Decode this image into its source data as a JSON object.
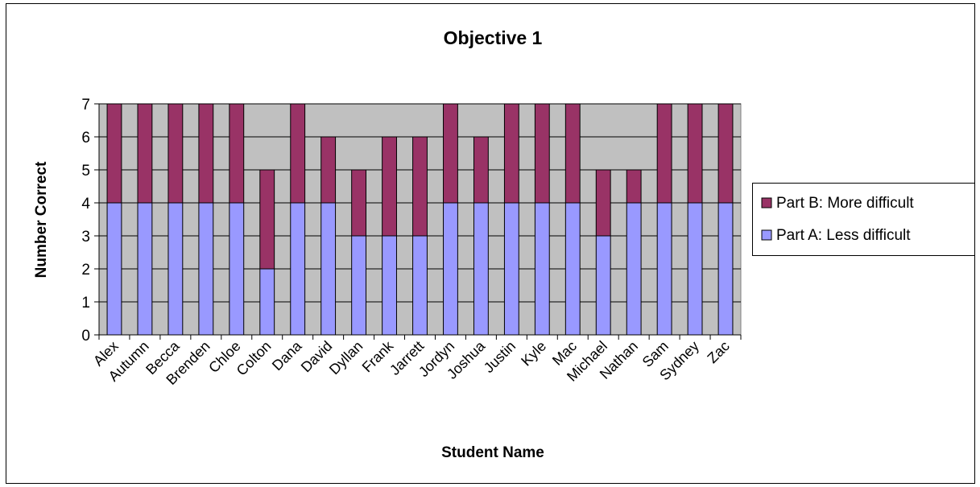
{
  "chart_data": {
    "type": "bar",
    "stacked": true,
    "title": "Objective 1",
    "xlabel": "Student Name",
    "ylabel": "Number Correct",
    "ylim": [
      0,
      7
    ],
    "yticks": [
      0,
      1,
      2,
      3,
      4,
      5,
      6,
      7
    ],
    "grid": true,
    "legend_position": "right",
    "categories": [
      "Alex",
      "Autumn",
      "Becca",
      "Brenden",
      "Chloe",
      "Colton",
      "Dana",
      "David",
      "Dyllan",
      "Frank",
      "Jarrett",
      "Jordyn",
      "Joshua",
      "Justin",
      "Kyle",
      "Mac",
      "Michael",
      "Nathan",
      "Sam",
      "Sydney",
      "Zac"
    ],
    "series": [
      {
        "name": "Part A: Less difficult",
        "color": "#9999ff",
        "values": [
          4,
          4,
          4,
          4,
          4,
          2,
          4,
          4,
          3,
          3,
          3,
          4,
          4,
          4,
          4,
          4,
          3,
          4,
          4,
          4,
          4
        ]
      },
      {
        "name": "Part B: More difficult",
        "color": "#993366",
        "values": [
          3,
          3,
          3,
          3,
          3,
          3,
          3,
          2,
          2,
          3,
          3,
          3,
          2,
          3,
          3,
          3,
          2,
          1,
          3,
          3,
          3
        ]
      }
    ],
    "plot_background": "#c0c0c0"
  }
}
